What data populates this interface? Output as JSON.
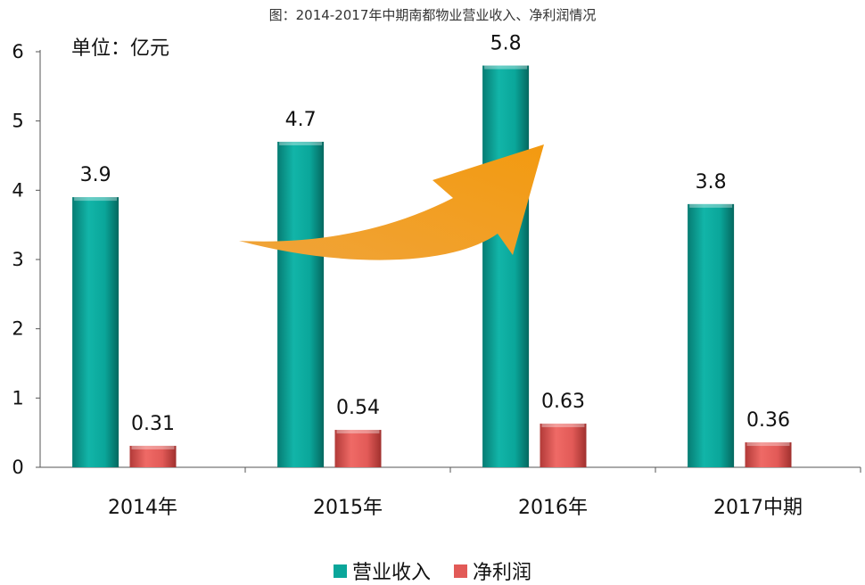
{
  "chart_data": {
    "type": "bar",
    "title": "图：2014-2017年中期南都物业营业收入、净利润情况",
    "unit_label": "单位：亿元",
    "categories": [
      "2014年",
      "2015年",
      "2016年",
      "2017中期"
    ],
    "series": [
      {
        "name": "营业收入",
        "values": [
          3.9,
          4.7,
          5.8,
          3.8
        ],
        "color": "#0aa69a"
      },
      {
        "name": "净利润",
        "values": [
          0.31,
          0.54,
          0.63,
          0.36
        ],
        "color": "#e25a57"
      }
    ],
    "data_labels": [
      [
        "3.9",
        "4.7",
        "5.8",
        "3.8"
      ],
      [
        "0.31",
        "0.54",
        "0.63",
        "0.36"
      ]
    ],
    "y_ticks": [
      "0",
      "1",
      "2",
      "3",
      "4",
      "5",
      "6"
    ],
    "ylim": [
      0,
      6
    ],
    "grid": false,
    "legend_position": "bottom-center",
    "annotation_arrow_color": "#f5a01c"
  }
}
